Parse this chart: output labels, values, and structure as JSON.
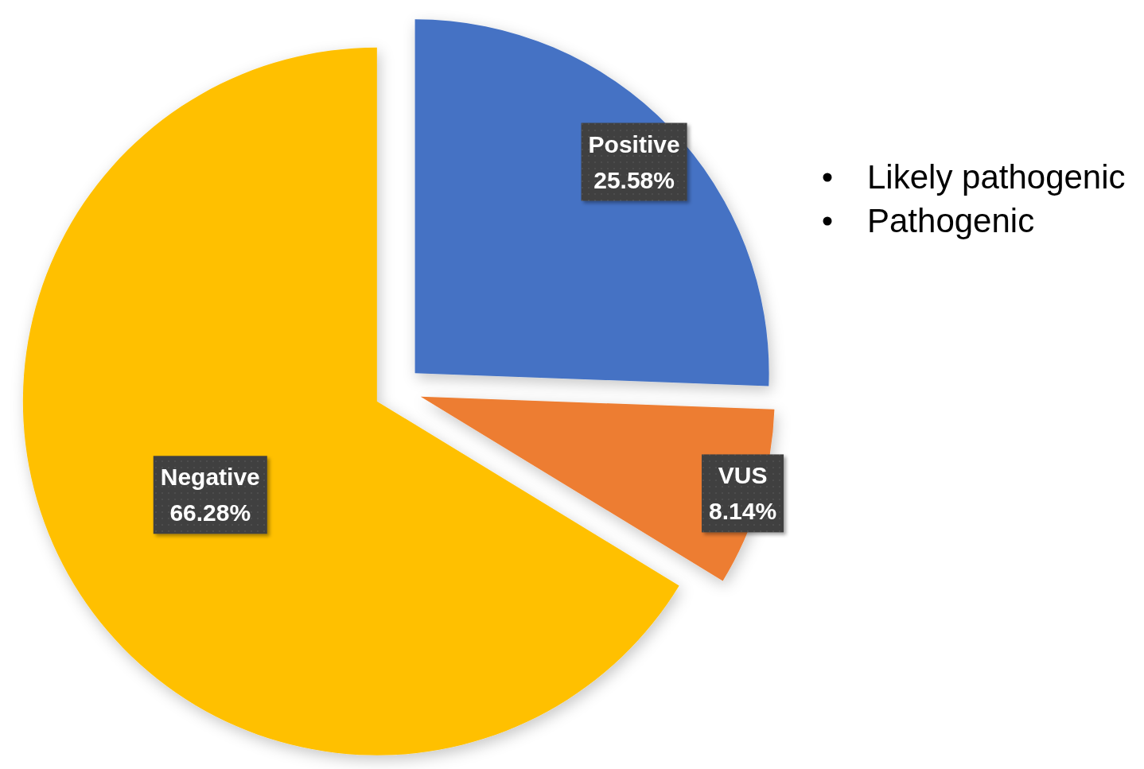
{
  "chart_data": {
    "type": "pie",
    "categories": [
      "Positive",
      "VUS",
      "Negative"
    ],
    "values": [
      25.58,
      8.14,
      66.28
    ],
    "colors": [
      "#4472c4",
      "#ed7d31",
      "#ffc000"
    ],
    "value_labels": [
      "25.58%",
      "8.14%",
      "66.28%"
    ],
    "annotations": [
      "Likely pathogenic",
      "Pathogenic"
    ]
  }
}
